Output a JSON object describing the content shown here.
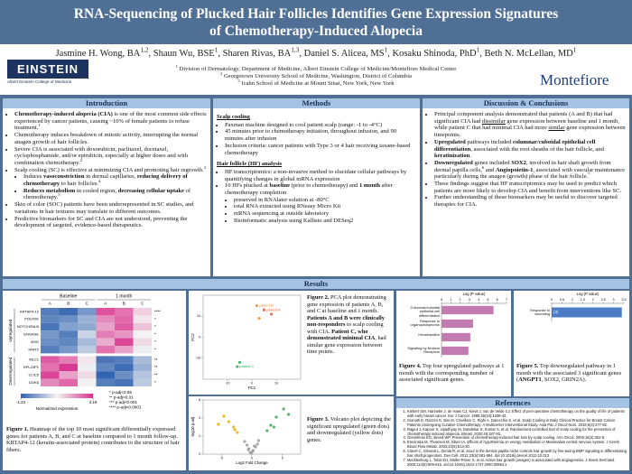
{
  "header": {
    "title_lines": [
      "RNA-Sequencing of Plucked Hair Follicles Identifies Gene Expression Signatures",
      "of Chemotherapy-Induced Alopecia"
    ],
    "authors": [
      "Jasmine H. Wong, BA",
      {
        "text": "1,2",
        "sup": true
      },
      ", Shaun Wu, BSE",
      {
        "text": "1",
        "sup": true
      },
      ", Sharen Rivas, BA",
      {
        "text": "1,3",
        "sup": true
      },
      ", Daniel S. Alicea, MS",
      {
        "text": "1",
        "sup": true
      },
      ", Kosaku Shinoda, PhD",
      {
        "text": "1",
        "sup": true
      },
      ", Beth N. McLellan, MD",
      {
        "text": "1",
        "sup": true
      }
    ],
    "affiliations": [
      [
        {
          "text": "1",
          "sup": true
        },
        " Division of Dermatology, Department of Medicine, Albert Einstein College of Medicine/Montefiore Medical Center"
      ],
      [
        {
          "text": "2",
          "sup": true
        },
        " Georgetown University School of Medicine, Washington, District of Columbia"
      ],
      [
        {
          "text": "3",
          "sup": true
        },
        " Icahn School of Medicine at Mount Sinai, New York, New York"
      ]
    ],
    "einstein_logo": {
      "name": "EINSTEIN",
      "subtitle": "Albert Einstein College of Medicine"
    },
    "montefiore_logo": "Montefiore"
  },
  "introduction": {
    "heading": "Introduction",
    "bullets": [
      {
        "level": 1,
        "text": [
          {
            "text": "Chemotherapy-induced alopecia (CIA)",
            "bold": true
          },
          " is one of the most common side effects experienced by cancer patients, causing ~10% of female patients to refuse treatment.",
          {
            "text": "1",
            "sup": true
          }
        ]
      },
      {
        "level": 1,
        "text": [
          "Chemotherapy induces breakdown of mitotic activity, interrupting the normal anagen growth of hair follicles."
        ]
      },
      {
        "level": 1,
        "text": [
          "Severe CIA is associated with doxorubicin, paclitaxel, docetaxel, cyclophosphamide, and/or epirubicin, especially at higher doses and with combination chemotherapy.",
          {
            "text": "2",
            "sup": true
          }
        ]
      },
      {
        "level": 1,
        "text": [
          "Scalp cooling (SC) is effective at minimizing CIA and promoting hair regrowth.",
          {
            "text": "3",
            "sup": true
          }
        ]
      },
      {
        "level": 2,
        "text": [
          "Induces ",
          {
            "text": "vasoconstriction",
            "bold": true
          },
          " in dermal capillaries, ",
          {
            "text": "reducing delivery of chemotherapy",
            "bold": true
          },
          " to hair follicles.",
          {
            "text": "4",
            "sup": true
          }
        ]
      },
      {
        "level": 2,
        "text": [
          {
            "text": "Reduces metabolism",
            "bold": true
          },
          " in cooled region, ",
          {
            "text": "decreasing cellular uptake",
            "bold": true
          },
          " of chemotherapy.",
          {
            "text": "5",
            "sup": true
          }
        ]
      },
      {
        "level": 1,
        "text": [
          "Skin of color (SOC) patients have been underrepresented in SC studies, and variations in hair textures may translate to different outcomes."
        ]
      },
      {
        "level": 1,
        "text": [
          "Predictive biomarkers for SC and CIA are not understood, preventing the development of targeted, evidence-based therapeutics."
        ]
      }
    ]
  },
  "methods": {
    "heading": "Methods",
    "scalp_heading": "Scalp cooling",
    "scalp_bullets": [
      {
        "level": 1,
        "text": [
          "Paxman machine designed to cool patient scalp (range: -1 to -4°C)"
        ]
      },
      {
        "level": 1,
        "text": [
          "45 minutes prior to chemotherapy initiation, throughout infusion, and 90 minutes after infusion"
        ]
      },
      {
        "level": 1,
        "text": [
          "Inclusion criteria: cancer patients with Type 3 or 4 hair receiving taxane-based chemotherapy"
        ]
      }
    ],
    "hf_heading": "Hair follicle (HF) analysis",
    "hf_bullets": [
      {
        "level": 1,
        "text": [
          "HF transcriptomics: a non-invasive method to elucidate cellular pathways by quantifying changes in global mRNA expression"
        ]
      },
      {
        "level": 1,
        "text": [
          "10 HFs plucked at ",
          {
            "text": "baseline",
            "bold": true
          },
          " (prior to chemotherapy) and ",
          {
            "text": "1 month",
            "bold": true
          },
          " after chemotherapy completion"
        ]
      },
      {
        "level": 2,
        "text": [
          "preserved in RNAlater solution at -80°C"
        ]
      },
      {
        "level": 2,
        "text": [
          "total RNA extracted using RNeasy Micro Kit"
        ]
      },
      {
        "level": 2,
        "text": [
          "mRNA sequencing at outside laboratory"
        ]
      },
      {
        "level": 2,
        "text": [
          "Bioinformatic analysis using Kallisto and DESeq2"
        ]
      }
    ]
  },
  "discussion": {
    "heading": "Discussion & Conclusions",
    "bullets": [
      {
        "level": 1,
        "text": [
          "Principal component analysis demonstrated that patients (A and B) that had significant CIA had ",
          {
            "text": "dissimilar",
            "underline": true
          },
          " gene expression between baseline and 1 month, while patient C that had minimal CIA had more ",
          {
            "text": "similar",
            "underline": true
          },
          " gene expression between timepoints."
        ]
      },
      {
        "level": 1,
        "text": [
          {
            "text": "Upregulated",
            "bold": true
          },
          " pathways included ",
          {
            "text": "columnar/cuboidal epithelial cell differentiation",
            "bold": true
          },
          ", associated with the root sheaths of the hair follicle, and ",
          {
            "text": "keratinization",
            "bold": true
          },
          "."
        ]
      },
      {
        "level": 1,
        "text": [
          {
            "text": "Downregulated",
            "bold": true
          },
          " genes included ",
          {
            "text": "SOX2",
            "bold": true
          },
          ", involved in hair shaft growth from dermal papilla cells,",
          {
            "text": "6",
            "sup": true
          },
          " and ",
          {
            "text": "Angiopoietin-1",
            "bold": true
          },
          ", associated with vascular maintenance particularly during the anagen (growth) phase of the hair follicle.",
          {
            "text": "7",
            "sup": true
          }
        ]
      },
      {
        "level": 1,
        "text": [
          "These findings suggest that HF transcriptomics may be used to predict which patients are more likely to develop CIA and benefit from interventions like SC."
        ]
      },
      {
        "level": 1,
        "text": [
          "Further understanding of these biomarkers may be useful to discover targeted therapies for CIA."
        ]
      }
    ]
  },
  "results": {
    "heading": "Results",
    "captions": [
      [
        {
          "text": "Figure 1.",
          "bold": true
        },
        " Heatmap of the top 10 most significant differentially expressed genes for patients A, B, and C at baseline compared to 1 month follow-up. KRTAP4-12 (keratin-associated protein) contributes to the structure of hair fibers."
      ],
      [
        {
          "text": "Figure 2.",
          "bold": true
        },
        " PCA plot demonstrating gene expression of patients A, B, and C at baseline and 1 month. ",
        {
          "text": "Patients A and B were clinically non-responders",
          "bold": true
        },
        " to scalp cooling with CIA. ",
        {
          "text": "Patient C, who demonstrated minimal CIA",
          "bold": true
        },
        ", had similar gene expression between time points."
      ],
      [
        {
          "text": "Figure 3.",
          "bold": true
        },
        " Volcano plot depicting the significant upregulated (green dots) and downregulated (yellow dots) genes."
      ],
      [
        {
          "text": "Figure 4.",
          "bold": true
        },
        " Top four upregulated pathways at 1 month with the corresponding number of associated significant genes."
      ],
      [
        {
          "text": "Figure 5.",
          "bold": true
        },
        " Top downregulated pathway in 1 month with the associated 3 significant genes (",
        {
          "text": "ANGPT1",
          "bold": true
        },
        ", SOX2, GRIN2A)."
      ]
    ]
  },
  "chart_data": [
    {
      "type": "heatmap",
      "col_groups": [
        {
          "name": "Baseline",
          "columns": [
            "A",
            "B",
            "C"
          ]
        },
        {
          "name": "1 month",
          "columns": [
            "A",
            "B",
            "C"
          ]
        }
      ],
      "row_groups": [
        {
          "name": "Upregulated",
          "rows": [
            "KRTAP4-12",
            "POLR2K",
            "NOTCH2NLB",
            "ENGASE",
            "MVD",
            "HINT2"
          ],
          "significance": [
            "****",
            "*",
            "*",
            "*",
            "*",
            "*"
          ],
          "values": [
            [
              -0.9,
              -1.1,
              -0.6,
              1.9,
              1.6,
              0.8
            ],
            [
              -0.8,
              -0.7,
              -0.3,
              1.4,
              1.7,
              0.6
            ],
            [
              -1.0,
              -0.5,
              -0.4,
              1.2,
              1.8,
              0.9
            ],
            [
              -0.6,
              -0.9,
              0.1,
              1.5,
              1.3,
              0.5
            ],
            [
              -0.7,
              -0.8,
              -0.2,
              1.1,
              2.0,
              0.7
            ],
            [
              -0.9,
              -0.6,
              0.0,
              1.6,
              1.2,
              0.4
            ]
          ]
        },
        {
          "name": "Downregulated",
          "rows": [
            "MLC1",
            "RPL23P1",
            "CLIC5",
            "DOK6"
          ],
          "significance": [
            "**",
            "**",
            "**",
            "*"
          ],
          "values": [
            [
              1.8,
              1.5,
              0.6,
              -1.0,
              -0.9,
              -0.2
            ],
            [
              1.6,
              2.1,
              0.4,
              -0.8,
              -1.1,
              -0.3
            ],
            [
              2.0,
              1.2,
              0.7,
              -1.2,
              -0.7,
              -0.1
            ],
            [
              1.4,
              1.7,
              0.5,
              -0.9,
              -1.0,
              0.0
            ]
          ]
        }
      ],
      "colorbar": {
        "lim": [
          -1.23,
          2.18
        ],
        "ticks": [
          -1.23,
          2.18
        ],
        "label": "Normalized expression",
        "colors": [
          "#2f62b0",
          "#f4f4f4",
          "#d8318c"
        ]
      },
      "significance_legend": [
        "* p-adj<0.05",
        "** p-adj<0.01",
        "*** p-adj<0.001",
        "**** p-adj<0.0001"
      ]
    },
    {
      "type": "scatter",
      "x_label": "PC1",
      "y_label": "PC2",
      "x": [
        5,
        2,
        8,
        3,
        -6,
        -5
      ],
      "values": [
        13,
        15,
        11,
        9,
        -14,
        -12
      ],
      "colors": [
        "#e4572e",
        "#f28e2b",
        "#e4572e",
        "#f28e2b",
        "#3aa655",
        "#3aa655"
      ],
      "point_labels": [
        "patient A",
        "patient B",
        null,
        null,
        "patient C",
        null
      ],
      "xlim": [
        -20,
        20
      ],
      "xticks": [
        -10,
        0,
        10
      ],
      "ylim": [
        -20,
        20
      ],
      "yticks": [
        -10,
        0,
        10
      ]
    },
    {
      "type": "scatter",
      "x_label": "Log2 Fold Change",
      "y_label": "-log10 p-adj",
      "x": [
        -0.3,
        0.2,
        -0.5,
        0.6,
        -0.8,
        0.9,
        -1.2,
        1.1,
        0.1,
        -0.1,
        0.4,
        -0.6,
        2.5,
        3.1,
        4.0,
        5.2,
        3.6,
        6.0,
        -2.4,
        -3.0,
        -3.8,
        -4.6,
        -2.8,
        -5.5
      ],
      "values": [
        0.2,
        0.4,
        0.6,
        0.8,
        1.0,
        1.1,
        1.4,
        1.5,
        0.3,
        0.1,
        0.9,
        0.5,
        2.6,
        3.2,
        4.1,
        5.0,
        3.0,
        4.4,
        2.4,
        3.0,
        3.6,
        4.2,
        2.7,
        3.3
      ],
      "colors": [
        "#9a9a9a",
        "#9a9a9a",
        "#9a9a9a",
        "#9a9a9a",
        "#9a9a9a",
        "#9a9a9a",
        "#9a9a9a",
        "#9a9a9a",
        "#9a9a9a",
        "#9a9a9a",
        "#9a9a9a",
        "#9a9a9a",
        "#3aa655",
        "#3aa655",
        "#3aa655",
        "#3aa655",
        "#3aa655",
        "#3aa655",
        "#e0b000",
        "#e0b000",
        "#e0b000",
        "#e0b000",
        "#e0b000",
        "#e0b000"
      ],
      "xlim": [
        -8,
        8
      ],
      "xticks": [
        -5,
        0,
        5
      ],
      "ylim": [
        0,
        6
      ],
      "yticks": [
        0,
        2,
        4,
        6
      ]
    },
    {
      "type": "bar",
      "orientation": "horizontal",
      "x_label": "Log (P value)",
      "categories": [
        "Columnar/cuboidal epithelial cell differentiation",
        "Response to organophosphorus",
        "Keratinization",
        "Signaling by Nuclear Receptors"
      ],
      "values": [
        5.6,
        3.4,
        3.1,
        2.9
      ],
      "color": "#c27bb0",
      "xlim": [
        0,
        7
      ],
      "xticks": [
        0,
        1,
        2,
        3,
        4,
        5,
        6,
        7
      ]
    },
    {
      "type": "bar",
      "orientation": "horizontal",
      "x_label": "Log (P value)",
      "categories": [
        "Response to wounding"
      ],
      "values": [
        3.4
      ],
      "annotations": [
        "(3)"
      ],
      "color": "#4a7bc4",
      "xlim": [
        0,
        3.5
      ],
      "xticks": [
        0,
        0.5,
        1,
        1.5,
        2,
        2.5,
        3,
        3.5
      ]
    }
  ],
  "references": {
    "heading": "References",
    "items": [
      "Kiebert GM, Hanneke J, de Haes CJ, Kievit J, van de Velde CJ. Effect of peri-operative chemotherapy on the quality of life of patients with early breast cancer. Eur J Cancer. 1990;26(10):1038-42.",
      "Gianotti E, Razzini G, Bini M, Crivellaro C, Righi A, Darecchio S, et al. Scalp Cooling in Daily Clinical Practice for Breast Cancer Patients Undergoing Curative Chemotherapy: A Multicenter Interventional Study. Asia Pac J Oncol Nurs. 2019;6(3):277-82.",
      "Rajput J, Kapoor S, Upadhyay M, Dandekar S, Kumar S, et al. Randomised controlled trial of scalp cooling for the prevention of chemotherapy induced alopecia. Breast. 2020;49:187-93.",
      "Grevelman EG, Breed WP. Prevention of chemotherapy-induced hair loss by scalp cooling. Ann Oncol. 2005;16(3):352-8.",
      "Erecinska M, Thoresen M, Silver IA. Effects of hypothermia on energy metabolism in Mammalian central nervous system. J Cereb Blood Flow Metab. 2003;23(5):513-30.",
      "Clavel C, Grisanti L, Zemla R, et al. Sox2 in the dermal papilla niche controls hair growth by fine-tuning BMP signaling in differentiating hair shaft progenitors. Dev Cell. 2012;23(5):981-994. doi:10.1016/j.devcel.2012.10.013",
      "Mecklenburg L, Tobin DJ, Müller-Röver S, et al. Active hair growth (anagen) is associated with angiogenesis. J Invest Dermatol. 2000;114(5):909-916. doi:10.1046/j.1523-1747.2000.00954.x"
    ]
  }
}
